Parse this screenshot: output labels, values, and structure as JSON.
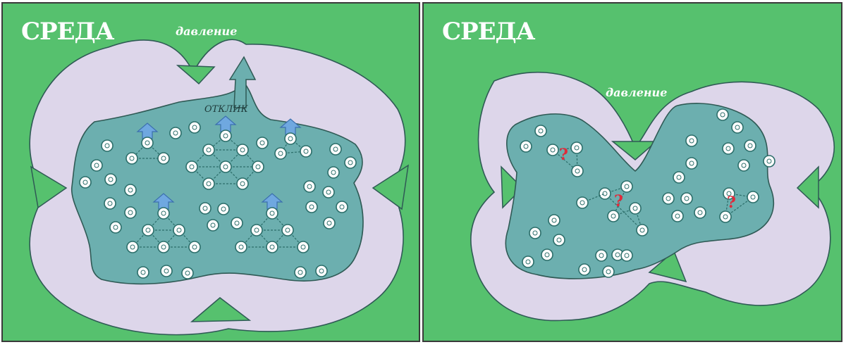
{
  "left_panel": {
    "title": "СРЕДА",
    "pressure_label": "давление",
    "response_label": "ОТКЛИК"
  },
  "right_panel": {
    "title": "СРЕДА",
    "pressure_label": "давление",
    "unknown_marker": "?"
  },
  "colors": {
    "environment": "#56c16e",
    "pressure_zone": "#ddd6ea",
    "system": "#6cafaf",
    "arrow": "#56c16e",
    "response_arrow": "#6fa8e0",
    "question": "#e02a3a"
  }
}
